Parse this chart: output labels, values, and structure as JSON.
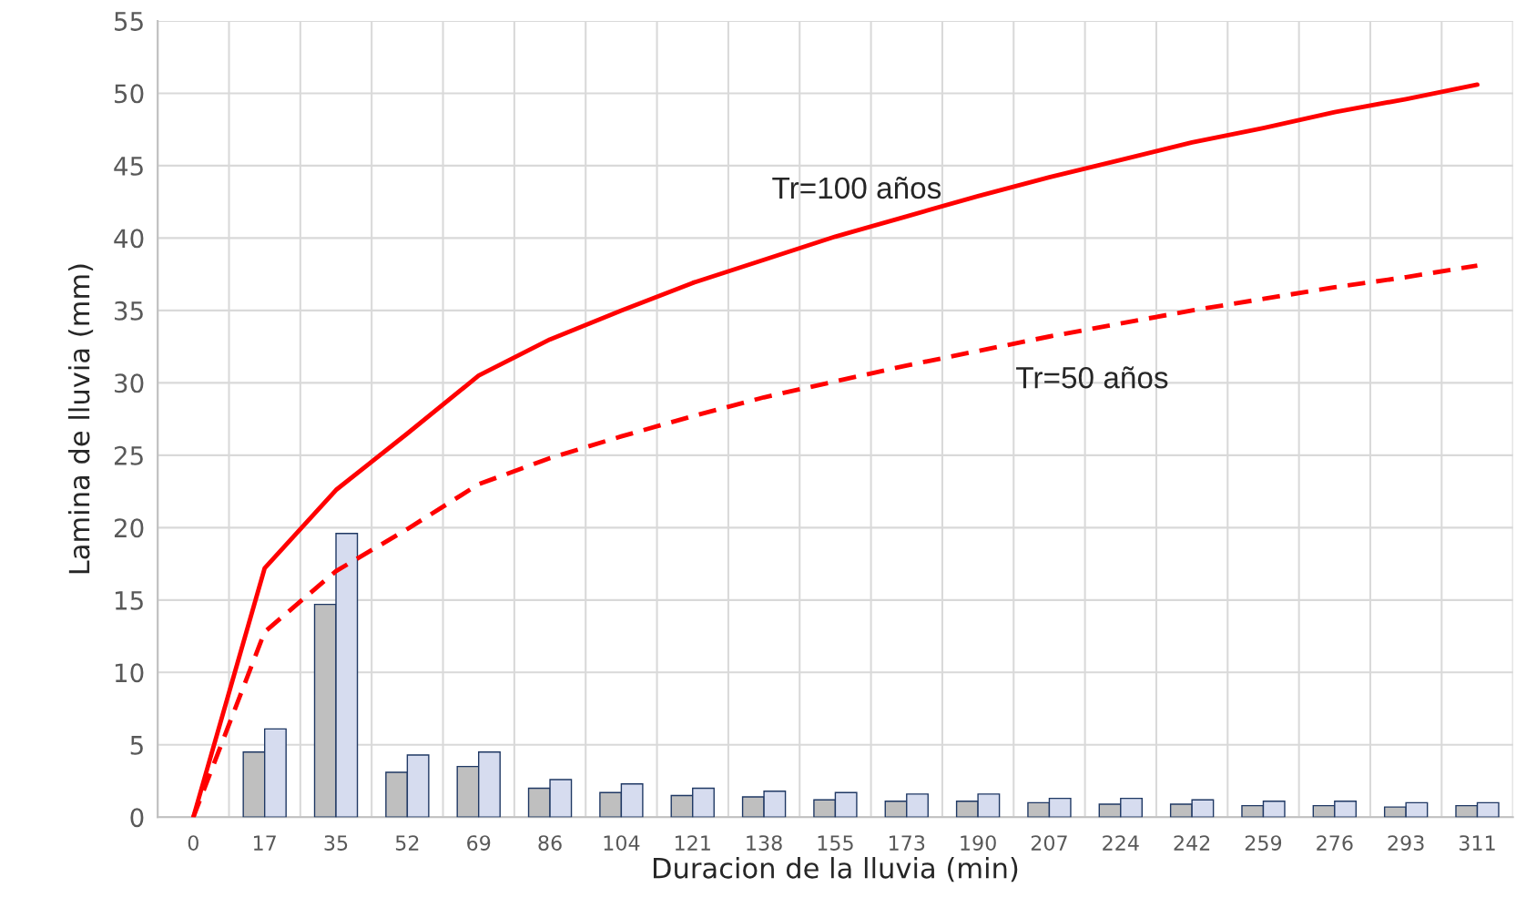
{
  "chart_data": {
    "type": "bar",
    "xlabel": "Duracion de la lluvia (min)",
    "ylabel": "Lamina de lluvia (mm)",
    "categories": [
      "0",
      "17",
      "35",
      "52",
      "69",
      "86",
      "104",
      "121",
      "138",
      "155",
      "173",
      "190",
      "207",
      "224",
      "242",
      "259",
      "276",
      "293",
      "311"
    ],
    "series": [
      {
        "color": "#bfbfbf",
        "values": [
          null,
          4.5,
          14.7,
          3.1,
          3.5,
          2.0,
          1.7,
          1.5,
          1.4,
          1.2,
          1.1,
          1.1,
          1.0,
          0.9,
          0.9,
          0.8,
          0.8,
          0.7,
          0.8
        ]
      },
      {
        "color": "#d6dcef",
        "values": [
          null,
          6.1,
          19.6,
          4.3,
          4.5,
          2.6,
          2.3,
          2.0,
          1.8,
          1.7,
          1.6,
          1.6,
          1.3,
          1.3,
          1.2,
          1.1,
          1.1,
          1.0,
          1.0
        ]
      },
      {
        "type": "line",
        "name": "Tr=100 años",
        "color": "#ff0000",
        "line_style": "solid",
        "values": [
          0,
          17.2,
          22.6,
          26.5,
          30.5,
          33.0,
          35.0,
          36.9,
          38.5,
          40.1,
          41.5,
          42.9,
          44.2,
          45.4,
          46.6,
          47.6,
          48.7,
          49.6,
          50.6
        ]
      },
      {
        "type": "line",
        "name": "Tr=50 años",
        "color": "#ff0000",
        "line_style": "dashed",
        "values": [
          0,
          12.8,
          17.0,
          19.9,
          23.0,
          24.8,
          26.3,
          27.7,
          29.0,
          30.1,
          31.2,
          32.2,
          33.2,
          34.1,
          35.0,
          35.8,
          36.6,
          37.3,
          38.1
        ]
      }
    ],
    "ylim": [
      0,
      55
    ],
    "yticks": [
      0,
      5,
      10,
      15,
      20,
      25,
      30,
      35,
      40,
      45,
      50,
      55
    ],
    "grid": true,
    "legend": false
  }
}
